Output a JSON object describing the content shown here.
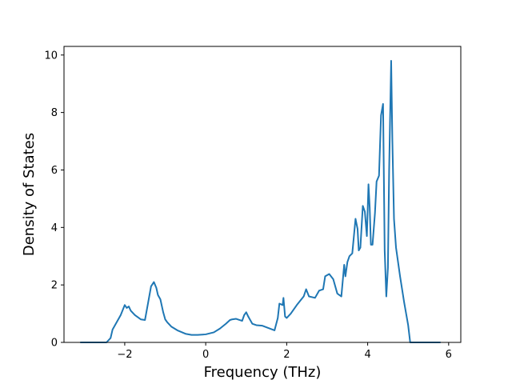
{
  "chart_data": {
    "type": "line",
    "title": "",
    "xlabel": "Frequency (THz)",
    "ylabel": "Density of States",
    "xlim": [
      -3.5,
      6.3
    ],
    "ylim": [
      0,
      10.3
    ],
    "xticks": [
      -2,
      0,
      2,
      4,
      6
    ],
    "yticks": [
      0,
      2,
      4,
      6,
      8,
      10
    ],
    "xtick_labels": [
      "−2",
      "0",
      "2",
      "4",
      "6"
    ],
    "ytick_labels": [
      "0",
      "2",
      "4",
      "6",
      "8",
      "10"
    ],
    "grid": false,
    "legend": "none",
    "series": [
      {
        "color": "#1f77b4",
        "x": [
          -3.1,
          -2.7,
          -2.45,
          -2.35,
          -2.3,
          -2.2,
          -2.1,
          -2.0,
          -1.95,
          -1.9,
          -1.85,
          -1.75,
          -1.6,
          -1.5,
          -1.42,
          -1.35,
          -1.28,
          -1.22,
          -1.18,
          -1.12,
          -1.05,
          -1.0,
          -0.95,
          -0.85,
          -0.7,
          -0.5,
          -0.35,
          -0.2,
          0.0,
          0.2,
          0.35,
          0.5,
          0.6,
          0.65,
          0.75,
          0.9,
          0.95,
          1.0,
          1.05,
          1.15,
          1.25,
          1.4,
          1.55,
          1.7,
          1.78,
          1.82,
          1.9,
          1.92,
          1.96,
          2.0,
          2.1,
          2.25,
          2.42,
          2.48,
          2.55,
          2.7,
          2.8,
          2.9,
          2.95,
          3.05,
          3.15,
          3.25,
          3.35,
          3.42,
          3.45,
          3.5,
          3.55,
          3.62,
          3.7,
          3.75,
          3.78,
          3.82,
          3.88,
          3.93,
          3.98,
          4.02,
          4.05,
          4.08,
          4.12,
          4.18,
          4.22,
          4.28,
          4.33,
          4.38,
          4.42,
          4.46,
          4.5,
          4.53,
          4.58,
          4.61,
          4.65,
          4.7,
          4.8,
          4.9,
          5.0,
          5.05,
          5.1,
          5.5,
          5.8
        ],
        "values": [
          0.0,
          0.0,
          0.0,
          0.15,
          0.45,
          0.7,
          0.95,
          1.3,
          1.2,
          1.25,
          1.1,
          0.95,
          0.8,
          0.78,
          1.4,
          1.95,
          2.1,
          1.9,
          1.65,
          1.5,
          1.05,
          0.8,
          0.7,
          0.55,
          0.42,
          0.3,
          0.26,
          0.26,
          0.28,
          0.35,
          0.48,
          0.65,
          0.78,
          0.8,
          0.82,
          0.75,
          0.95,
          1.05,
          0.9,
          0.65,
          0.6,
          0.58,
          0.5,
          0.42,
          0.85,
          1.35,
          1.3,
          1.55,
          0.9,
          0.85,
          1.0,
          1.3,
          1.6,
          1.85,
          1.6,
          1.55,
          1.8,
          1.85,
          2.3,
          2.38,
          2.2,
          1.7,
          1.6,
          2.7,
          2.3,
          2.8,
          3.0,
          3.1,
          4.3,
          3.95,
          3.2,
          3.3,
          4.75,
          4.55,
          3.7,
          5.5,
          4.7,
          3.4,
          3.4,
          4.5,
          5.6,
          5.8,
          7.9,
          8.3,
          3.2,
          1.6,
          2.6,
          6.0,
          9.8,
          7.0,
          4.3,
          3.3,
          2.3,
          1.4,
          0.6,
          0.0,
          0.0,
          0.0,
          0.0
        ]
      }
    ]
  }
}
